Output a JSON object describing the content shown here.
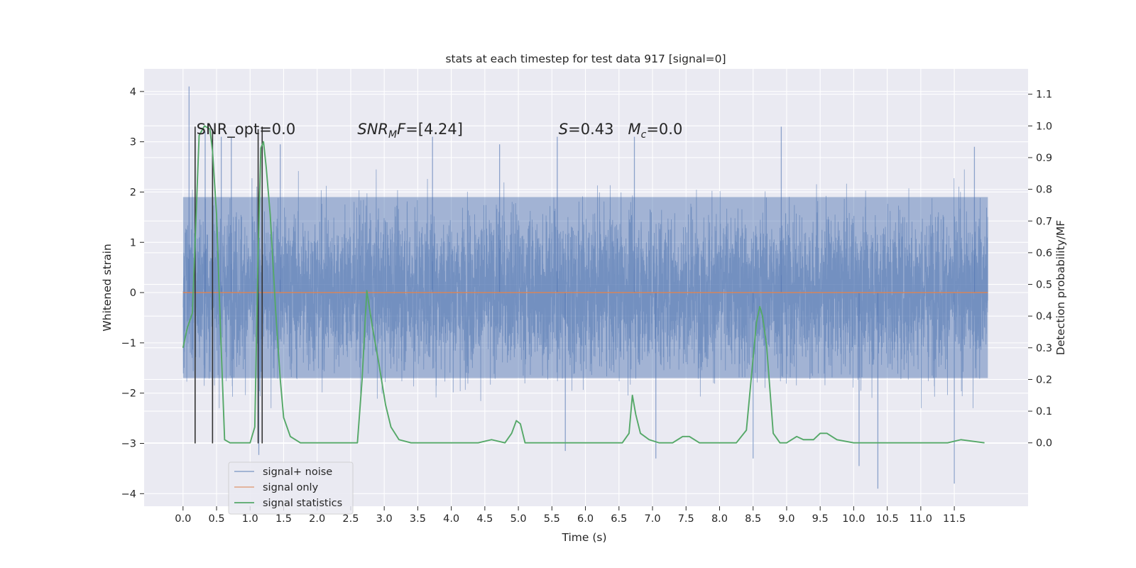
{
  "chart_data": {
    "type": "line",
    "title": "stats at each timestep for test data 917 [signal=0]",
    "xlabel": "Time (s)",
    "ylabel": "Whitened strain",
    "ylabel_right": "Detection probability/MF",
    "xlim": [
      -0.58,
      12.6
    ],
    "ylim": [
      -4.25,
      4.45
    ],
    "ylim_right": [
      -0.2,
      1.18
    ],
    "x_ticks": [
      "0.0",
      "0.5",
      "1.0",
      "1.5",
      "2.0",
      "2.5",
      "3.0",
      "3.5",
      "4.0",
      "4.5",
      "5.0",
      "5.5",
      "6.0",
      "6.5",
      "7.0",
      "7.5",
      "8.0",
      "8.5",
      "9.0",
      "9.5",
      "10.0",
      "10.5",
      "11.0",
      "11.5"
    ],
    "y_ticks": [
      "4",
      "3",
      "2",
      "1",
      "0",
      "−1",
      "−2",
      "−3",
      "−4"
    ],
    "y_ticks_right": [
      "1.1",
      "1.0",
      "0.9",
      "0.8",
      "0.7",
      "0.6",
      "0.5",
      "0.4",
      "0.3",
      "0.2",
      "0.1",
      "0.0"
    ],
    "grid": true,
    "legend_position": "lower-left",
    "annotations": [
      {
        "text": "SNR_opt=0.0",
        "x": 0.2,
        "y": 3.15
      },
      {
        "text": "SNR_MF=[4.24]",
        "x": 2.6,
        "y": 3.15
      },
      {
        "text": "S=0.43   M_c=0.0",
        "x": 5.6,
        "y": 3.15
      }
    ],
    "vertical_markers": [
      {
        "x": 0.18,
        "y_top": 3.3
      },
      {
        "x": 0.44,
        "y_top": 3.25
      },
      {
        "x": 1.12,
        "y_top": 3.25
      },
      {
        "x": 1.18,
        "y_top": 3.3
      }
    ],
    "series": [
      {
        "name": "signal+ noise",
        "color": "#4c72b0",
        "axis": "left",
        "x_range": [
          0.0,
          12.0
        ],
        "typical_band": [
          -1.7,
          1.9
        ],
        "extremes": [
          {
            "x": 0.09,
            "y": 4.1
          },
          {
            "x": 0.33,
            "y": 3.2
          },
          {
            "x": 0.57,
            "y": 3.1
          },
          {
            "x": 0.72,
            "y": 3.1
          },
          {
            "x": 1.13,
            "y": -3.23
          },
          {
            "x": 1.45,
            "y": 2.95
          },
          {
            "x": 3.72,
            "y": 3.1
          },
          {
            "x": 4.72,
            "y": 2.95
          },
          {
            "x": 5.58,
            "y": 3.1
          },
          {
            "x": 5.7,
            "y": -3.15
          },
          {
            "x": 6.73,
            "y": 3.1
          },
          {
            "x": 7.05,
            "y": -3.3
          },
          {
            "x": 8.5,
            "y": -3.3
          },
          {
            "x": 8.92,
            "y": 3.3
          },
          {
            "x": 10.08,
            "y": -3.45
          },
          {
            "x": 10.36,
            "y": -3.9
          },
          {
            "x": 11.5,
            "y": -3.8
          },
          {
            "x": 11.8,
            "y": 2.9
          }
        ]
      },
      {
        "name": "signal only",
        "color": "#dd8452",
        "axis": "left",
        "x": [
          0.0,
          12.0
        ],
        "y": [
          0.0,
          0.0
        ]
      },
      {
        "name": "signal statistics",
        "color": "#55a868",
        "axis": "right",
        "x": [
          0.0,
          0.06,
          0.14,
          0.24,
          0.32,
          0.4,
          0.44,
          0.5,
          0.56,
          0.62,
          0.7,
          0.85,
          1.0,
          1.07,
          1.12,
          1.16,
          1.2,
          1.24,
          1.3,
          1.38,
          1.45,
          1.5,
          1.6,
          1.75,
          2.0,
          2.3,
          2.6,
          2.67,
          2.74,
          2.82,
          2.92,
          3.02,
          3.1,
          3.22,
          3.4,
          4.0,
          4.4,
          4.6,
          4.8,
          4.9,
          4.97,
          5.03,
          5.1,
          5.3,
          6.0,
          6.55,
          6.65,
          6.7,
          6.75,
          6.82,
          6.95,
          7.1,
          7.3,
          7.45,
          7.55,
          7.7,
          8.0,
          8.25,
          8.4,
          8.55,
          8.6,
          8.64,
          8.7,
          8.8,
          8.9,
          9.0,
          9.15,
          9.25,
          9.4,
          9.5,
          9.6,
          9.75,
          10.0,
          10.5,
          11.0,
          11.4,
          11.6,
          11.95
        ],
        "y": [
          0.3,
          0.36,
          0.41,
          0.97,
          1.0,
          0.99,
          0.92,
          0.72,
          0.35,
          0.01,
          0.0,
          0.0,
          0.0,
          0.05,
          0.6,
          0.93,
          0.95,
          0.87,
          0.72,
          0.42,
          0.2,
          0.08,
          0.02,
          0.0,
          0.0,
          0.0,
          0.0,
          0.2,
          0.48,
          0.37,
          0.25,
          0.12,
          0.05,
          0.01,
          0.0,
          0.0,
          0.0,
          0.01,
          0.0,
          0.03,
          0.07,
          0.06,
          0.0,
          0.0,
          0.0,
          0.0,
          0.03,
          0.15,
          0.09,
          0.03,
          0.01,
          0.0,
          0.0,
          0.02,
          0.02,
          0.0,
          0.0,
          0.0,
          0.04,
          0.38,
          0.43,
          0.4,
          0.31,
          0.03,
          0.0,
          0.0,
          0.02,
          0.01,
          0.01,
          0.03,
          0.03,
          0.01,
          0.0,
          0.0,
          0.0,
          0.0,
          0.01,
          0.0
        ]
      }
    ]
  }
}
